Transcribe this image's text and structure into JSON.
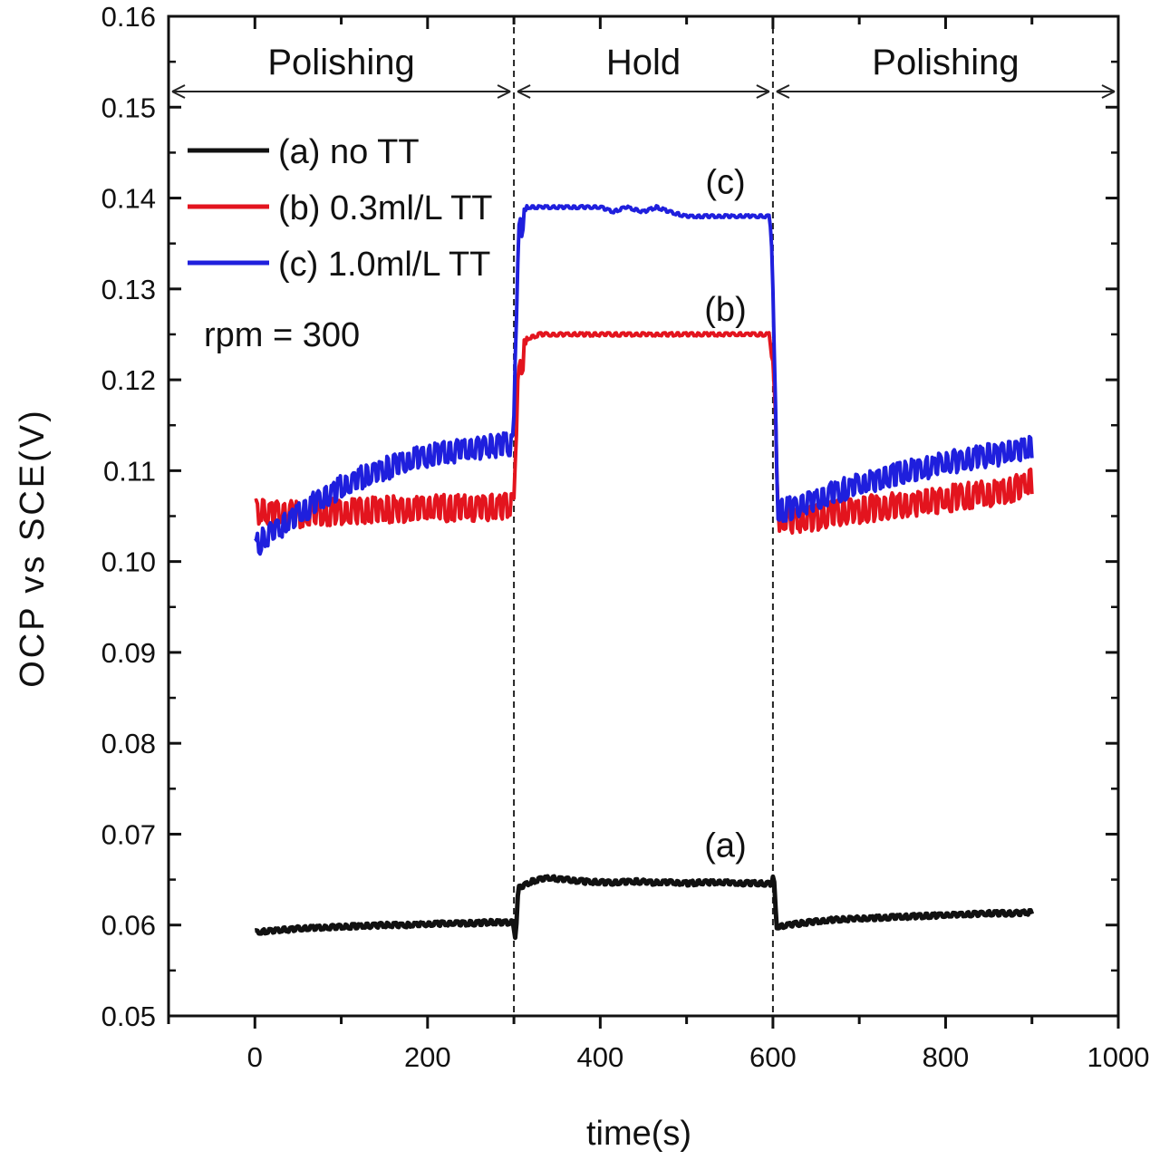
{
  "chart_data": {
    "type": "line",
    "xlabel": "time(s)",
    "ylabel": "OCP vs SCE(V)",
    "xlim": [
      -100,
      1000
    ],
    "ylim": [
      0.05,
      0.16
    ],
    "xticks": [
      0,
      200,
      400,
      600,
      800,
      1000
    ],
    "xtick_labels": [
      "0",
      "200",
      "400",
      "600",
      "800",
      "1000"
    ],
    "yticks": [
      0.05,
      0.06,
      0.07,
      0.08,
      0.09,
      0.1,
      0.11,
      0.12,
      0.13,
      0.14,
      0.15,
      0.16
    ],
    "ytick_labels": [
      "0.05",
      "0.06",
      "0.07",
      "0.08",
      "0.09",
      "0.10",
      "0.11",
      "0.12",
      "0.13",
      "0.14",
      "0.15",
      "0.16"
    ],
    "regions": [
      {
        "label": "Polishing",
        "x_start": -100,
        "x_end": 300
      },
      {
        "label": "Hold",
        "x_start": 300,
        "x_end": 600
      },
      {
        "label": "Polishing",
        "x_start": 600,
        "x_end": 1000
      }
    ],
    "dividers": [
      300,
      600
    ],
    "annotation_text": "rpm = 300",
    "legend_position": "top-left",
    "series": [
      {
        "name": "(a) no TT",
        "tag": "(a)",
        "color": "#111111",
        "x": [
          0,
          25,
          50,
          75,
          100,
          125,
          150,
          175,
          200,
          225,
          250,
          275,
          299,
          302,
          305,
          320,
          340,
          360,
          380,
          400,
          420,
          440,
          460,
          480,
          500,
          520,
          540,
          560,
          580,
          598,
          601,
          604,
          625,
          650,
          675,
          700,
          725,
          750,
          775,
          800,
          825,
          850,
          875,
          900
        ],
        "y": [
          0.0592,
          0.0594,
          0.0596,
          0.0597,
          0.0598,
          0.0599,
          0.06,
          0.06,
          0.0601,
          0.0602,
          0.0602,
          0.0603,
          0.0603,
          0.0585,
          0.064,
          0.0648,
          0.0652,
          0.065,
          0.0648,
          0.0647,
          0.0647,
          0.0648,
          0.0647,
          0.0647,
          0.0646,
          0.0647,
          0.0647,
          0.0646,
          0.0646,
          0.0645,
          0.0655,
          0.0598,
          0.0601,
          0.0604,
          0.0606,
          0.0607,
          0.0608,
          0.0609,
          0.061,
          0.0611,
          0.0612,
          0.0613,
          0.0613,
          0.0614
        ]
      },
      {
        "name": "(b) 0.3ml/L TT",
        "tag": "(b)",
        "color": "#e3141e",
        "x": [
          0,
          25,
          50,
          75,
          100,
          125,
          150,
          175,
          200,
          225,
          250,
          275,
          299,
          305,
          315,
          330,
          400,
          500,
          598,
          603,
          607,
          625,
          650,
          675,
          700,
          725,
          750,
          775,
          800,
          825,
          850,
          875,
          900
        ],
        "y": [
          0.1055,
          0.1053,
          0.1052,
          0.1054,
          0.1055,
          0.1056,
          0.1057,
          0.1058,
          0.1058,
          0.1059,
          0.1059,
          0.106,
          0.106,
          0.12,
          0.1245,
          0.125,
          0.125,
          0.125,
          0.125,
          0.115,
          0.1045,
          0.1045,
          0.1049,
          0.1053,
          0.1057,
          0.106,
          0.1063,
          0.1066,
          0.1069,
          0.1072,
          0.1075,
          0.1078,
          0.1088
        ]
      },
      {
        "name": "(c) 1.0ml/L TT",
        "tag": "(c)",
        "color": "#1f1fdd",
        "x": [
          0,
          10,
          25,
          50,
          75,
          100,
          125,
          150,
          175,
          200,
          225,
          250,
          275,
          299,
          302,
          306,
          315,
          400,
          415,
          430,
          450,
          465,
          480,
          500,
          550,
          598,
          602,
          606,
          625,
          650,
          675,
          700,
          725,
          750,
          775,
          800,
          825,
          850,
          875,
          900
        ],
        "y": [
          0.1015,
          0.1025,
          0.1035,
          0.1052,
          0.1068,
          0.1082,
          0.1093,
          0.1102,
          0.111,
          0.1116,
          0.1121,
          0.1124,
          0.1127,
          0.113,
          0.125,
          0.136,
          0.139,
          0.139,
          0.1385,
          0.139,
          0.1385,
          0.139,
          0.1385,
          0.138,
          0.138,
          0.138,
          0.12,
          0.1055,
          0.106,
          0.1068,
          0.1077,
          0.1085,
          0.1092,
          0.1098,
          0.1103,
          0.1108,
          0.1113,
          0.1117,
          0.112,
          0.1125
        ]
      }
    ],
    "series_noise_amplitude": [
      0.00025,
      0.0015,
      0.0013
    ]
  }
}
